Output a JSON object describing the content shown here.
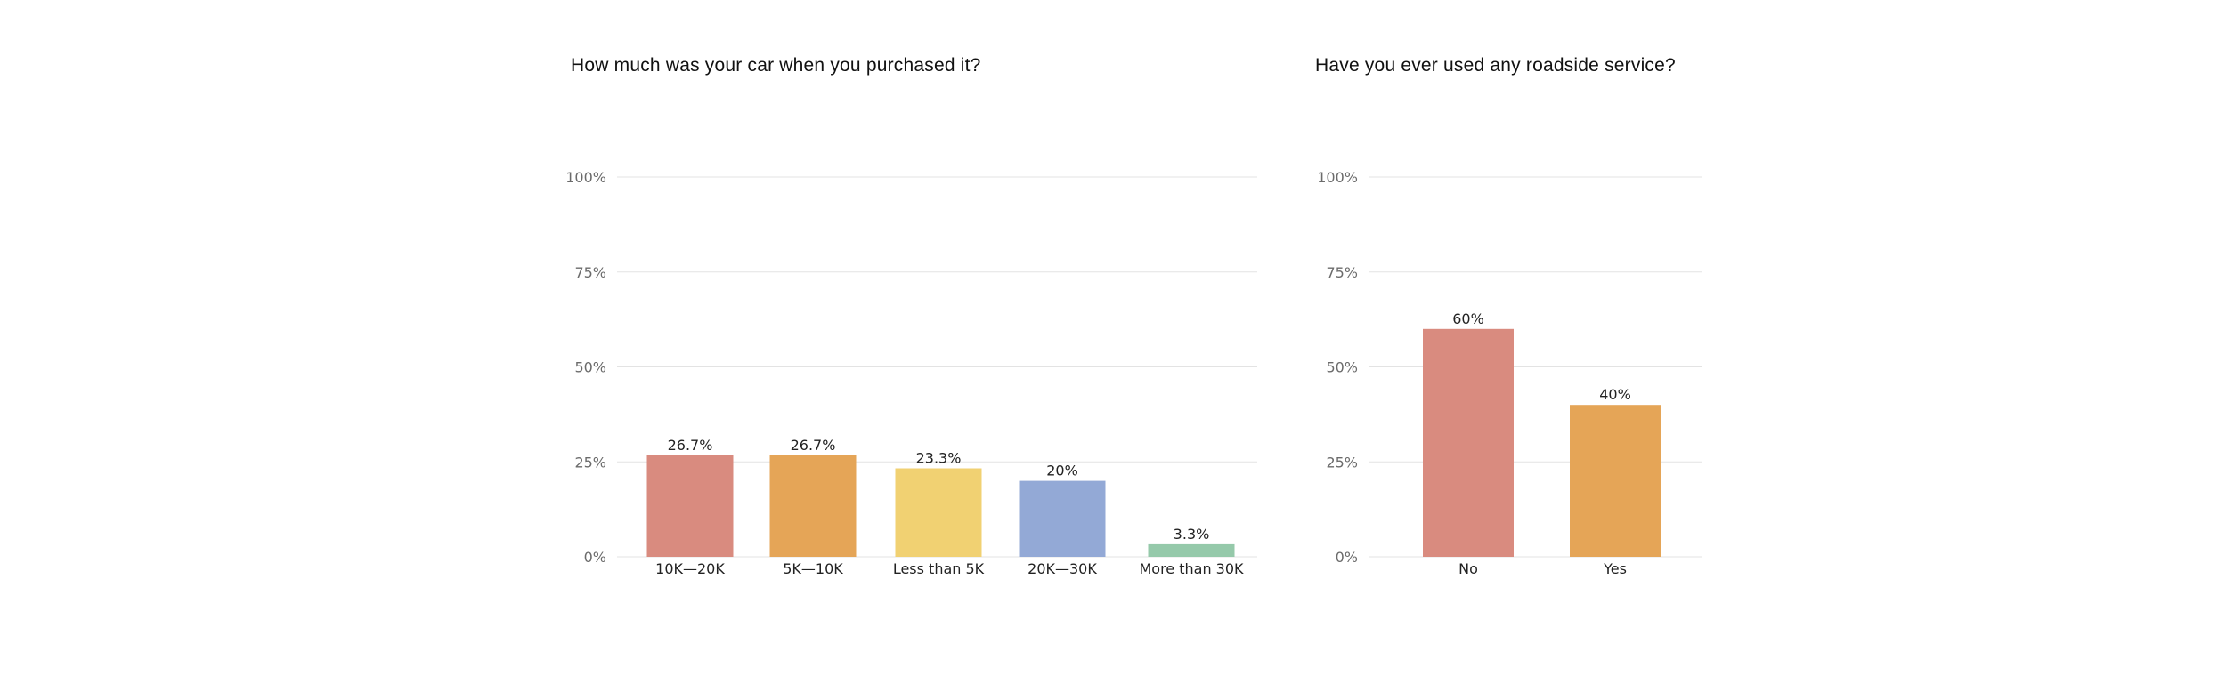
{
  "chart_data": [
    {
      "type": "bar",
      "title": "How much was your car when you purchased it?",
      "categories": [
        "10K—20K",
        "5K—10K",
        "Less than 5K",
        "20K—30K",
        "More than 30K"
      ],
      "values": [
        26.7,
        26.7,
        23.3,
        20,
        3.3
      ],
      "value_labels": [
        "26.7%",
        "26.7%",
        "23.3%",
        "20%",
        "3.3%"
      ],
      "colors": [
        "#d98b7f",
        "#e5a557",
        "#f1d172",
        "#93a9d6",
        "#95c9aa"
      ],
      "yticks": [
        "0%",
        "25%",
        "50%",
        "75%",
        "100%"
      ],
      "ylim": [
        0,
        100
      ],
      "grid": true,
      "xlabel": "",
      "ylabel": ""
    },
    {
      "type": "bar",
      "title": "Have you ever used any roadside service?",
      "categories": [
        "No",
        "Yes"
      ],
      "values": [
        60,
        40
      ],
      "value_labels": [
        "60%",
        "40%"
      ],
      "colors": [
        "#d98b7f",
        "#e5a557"
      ],
      "yticks": [
        "0%",
        "25%",
        "50%",
        "75%",
        "100%"
      ],
      "ylim": [
        0,
        100
      ],
      "grid": true,
      "xlabel": "",
      "ylabel": ""
    }
  ]
}
